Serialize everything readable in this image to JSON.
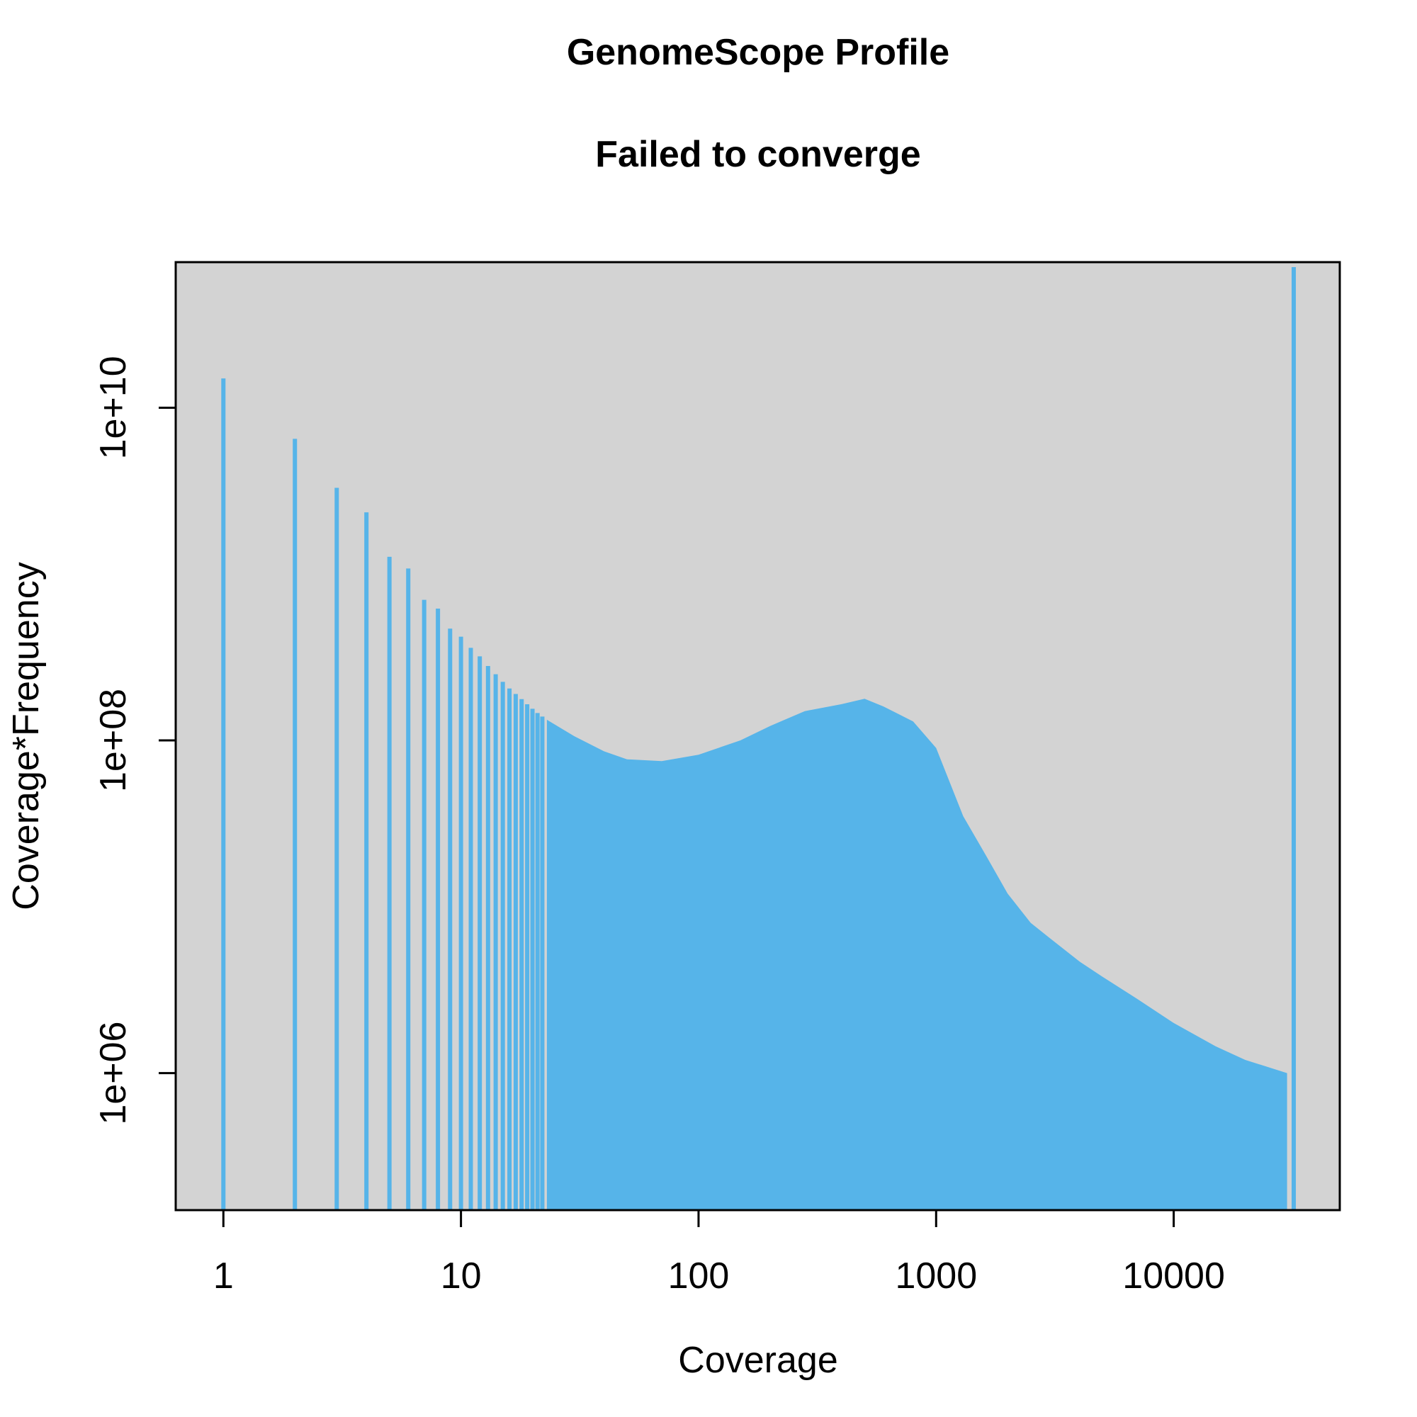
{
  "chart_data": {
    "type": "bar",
    "title": "GenomeScope Profile",
    "subtitle": "Failed to converge",
    "xlabel": "Coverage",
    "ylabel": "Coverage*Frequency",
    "x_scale": "log",
    "y_scale": "log",
    "xlim": [
      0.63,
      50000
    ],
    "ylim": [
      150000,
      75000000000
    ],
    "x_ticks": [
      {
        "value": 1,
        "label": "1"
      },
      {
        "value": 10,
        "label": "10"
      },
      {
        "value": 100,
        "label": "100"
      },
      {
        "value": 1000,
        "label": "1000"
      },
      {
        "value": 10000,
        "label": "10000"
      }
    ],
    "y_ticks": [
      {
        "value": 1000000,
        "label": "1e+06"
      },
      {
        "value": 100000000,
        "label": "1e+08"
      },
      {
        "value": 10000000000,
        "label": "1e+10"
      }
    ],
    "grid": false,
    "colors": {
      "bar": "#56B4E9",
      "panel_background": "#D3D3D3",
      "axis": "#000000"
    },
    "discrete_bars": [
      {
        "x": 1,
        "y": 15000000000
      },
      {
        "x": 2,
        "y": 6500000000
      },
      {
        "x": 3,
        "y": 3300000000
      },
      {
        "x": 4,
        "y": 2350000000
      },
      {
        "x": 5,
        "y": 1270000000
      },
      {
        "x": 6,
        "y": 1080000000
      },
      {
        "x": 7,
        "y": 700000000
      },
      {
        "x": 8,
        "y": 620000000
      },
      {
        "x": 9,
        "y": 470000000
      },
      {
        "x": 10,
        "y": 420000000
      },
      {
        "x": 11,
        "y": 360000000
      },
      {
        "x": 12,
        "y": 320000000
      },
      {
        "x": 13,
        "y": 280000000
      },
      {
        "x": 14,
        "y": 250000000
      },
      {
        "x": 15,
        "y": 225000000
      },
      {
        "x": 16,
        "y": 205000000
      },
      {
        "x": 17,
        "y": 190000000
      },
      {
        "x": 18,
        "y": 177000000
      },
      {
        "x": 19,
        "y": 165000000
      },
      {
        "x": 20,
        "y": 155000000
      },
      {
        "x": 21,
        "y": 146000000
      },
      {
        "x": 22,
        "y": 139000000
      }
    ],
    "envelope": [
      {
        "x": 23,
        "y": 133000000
      },
      {
        "x": 30,
        "y": 106000000
      },
      {
        "x": 40,
        "y": 86000000
      },
      {
        "x": 50,
        "y": 77000000
      },
      {
        "x": 70,
        "y": 75000000
      },
      {
        "x": 100,
        "y": 82000000
      },
      {
        "x": 150,
        "y": 100000000
      },
      {
        "x": 200,
        "y": 122000000
      },
      {
        "x": 280,
        "y": 150000000
      },
      {
        "x": 400,
        "y": 165000000
      },
      {
        "x": 500,
        "y": 178000000
      },
      {
        "x": 600,
        "y": 160000000
      },
      {
        "x": 800,
        "y": 130000000
      },
      {
        "x": 1000,
        "y": 90000000
      },
      {
        "x": 1300,
        "y": 35000000
      },
      {
        "x": 1600,
        "y": 21000000
      },
      {
        "x": 2000,
        "y": 12000000
      },
      {
        "x": 2500,
        "y": 8000000
      },
      {
        "x": 3000,
        "y": 6500000
      },
      {
        "x": 4000,
        "y": 4700000
      },
      {
        "x": 5000,
        "y": 3800000
      },
      {
        "x": 7000,
        "y": 2800000
      },
      {
        "x": 10000,
        "y": 2000000
      },
      {
        "x": 15000,
        "y": 1450000
      },
      {
        "x": 20000,
        "y": 1200000
      },
      {
        "x": 30000,
        "y": 1000000
      }
    ],
    "outlier_bar": {
      "x": 32000,
      "y": 70000000000
    }
  }
}
